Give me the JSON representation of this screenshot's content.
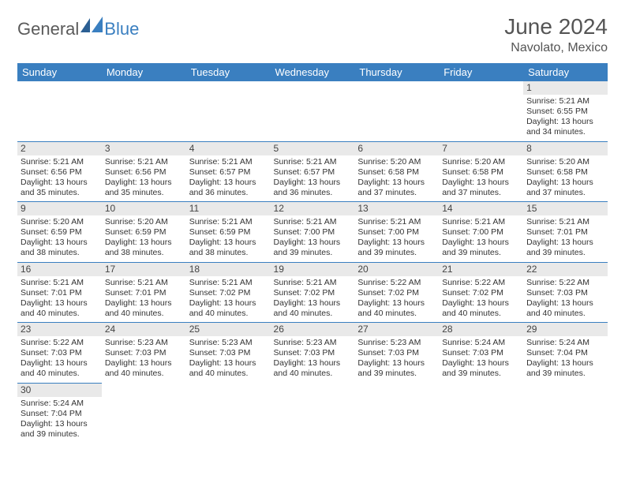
{
  "logo": {
    "part1": "General",
    "part2": "Blue"
  },
  "title": "June 2024",
  "location": "Navolato, Mexico",
  "colors": {
    "header_bg": "#3a7fc0",
    "header_fg": "#ffffff",
    "daynum_bg": "#e9e9e9",
    "empty_bg": "#f0f0f0",
    "border": "#3a7fc0",
    "text": "#333333"
  },
  "weekdays": [
    "Sunday",
    "Monday",
    "Tuesday",
    "Wednesday",
    "Thursday",
    "Friday",
    "Saturday"
  ],
  "weeks": [
    [
      null,
      null,
      null,
      null,
      null,
      null,
      {
        "n": "1",
        "sr": "5:21 AM",
        "ss": "6:55 PM",
        "dl": "13 hours and 34 minutes."
      }
    ],
    [
      {
        "n": "2",
        "sr": "5:21 AM",
        "ss": "6:56 PM",
        "dl": "13 hours and 35 minutes."
      },
      {
        "n": "3",
        "sr": "5:21 AM",
        "ss": "6:56 PM",
        "dl": "13 hours and 35 minutes."
      },
      {
        "n": "4",
        "sr": "5:21 AM",
        "ss": "6:57 PM",
        "dl": "13 hours and 36 minutes."
      },
      {
        "n": "5",
        "sr": "5:21 AM",
        "ss": "6:57 PM",
        "dl": "13 hours and 36 minutes."
      },
      {
        "n": "6",
        "sr": "5:20 AM",
        "ss": "6:58 PM",
        "dl": "13 hours and 37 minutes."
      },
      {
        "n": "7",
        "sr": "5:20 AM",
        "ss": "6:58 PM",
        "dl": "13 hours and 37 minutes."
      },
      {
        "n": "8",
        "sr": "5:20 AM",
        "ss": "6:58 PM",
        "dl": "13 hours and 37 minutes."
      }
    ],
    [
      {
        "n": "9",
        "sr": "5:20 AM",
        "ss": "6:59 PM",
        "dl": "13 hours and 38 minutes."
      },
      {
        "n": "10",
        "sr": "5:20 AM",
        "ss": "6:59 PM",
        "dl": "13 hours and 38 minutes."
      },
      {
        "n": "11",
        "sr": "5:21 AM",
        "ss": "6:59 PM",
        "dl": "13 hours and 38 minutes."
      },
      {
        "n": "12",
        "sr": "5:21 AM",
        "ss": "7:00 PM",
        "dl": "13 hours and 39 minutes."
      },
      {
        "n": "13",
        "sr": "5:21 AM",
        "ss": "7:00 PM",
        "dl": "13 hours and 39 minutes."
      },
      {
        "n": "14",
        "sr": "5:21 AM",
        "ss": "7:00 PM",
        "dl": "13 hours and 39 minutes."
      },
      {
        "n": "15",
        "sr": "5:21 AM",
        "ss": "7:01 PM",
        "dl": "13 hours and 39 minutes."
      }
    ],
    [
      {
        "n": "16",
        "sr": "5:21 AM",
        "ss": "7:01 PM",
        "dl": "13 hours and 40 minutes."
      },
      {
        "n": "17",
        "sr": "5:21 AM",
        "ss": "7:01 PM",
        "dl": "13 hours and 40 minutes."
      },
      {
        "n": "18",
        "sr": "5:21 AM",
        "ss": "7:02 PM",
        "dl": "13 hours and 40 minutes."
      },
      {
        "n": "19",
        "sr": "5:21 AM",
        "ss": "7:02 PM",
        "dl": "13 hours and 40 minutes."
      },
      {
        "n": "20",
        "sr": "5:22 AM",
        "ss": "7:02 PM",
        "dl": "13 hours and 40 minutes."
      },
      {
        "n": "21",
        "sr": "5:22 AM",
        "ss": "7:02 PM",
        "dl": "13 hours and 40 minutes."
      },
      {
        "n": "22",
        "sr": "5:22 AM",
        "ss": "7:03 PM",
        "dl": "13 hours and 40 minutes."
      }
    ],
    [
      {
        "n": "23",
        "sr": "5:22 AM",
        "ss": "7:03 PM",
        "dl": "13 hours and 40 minutes."
      },
      {
        "n": "24",
        "sr": "5:23 AM",
        "ss": "7:03 PM",
        "dl": "13 hours and 40 minutes."
      },
      {
        "n": "25",
        "sr": "5:23 AM",
        "ss": "7:03 PM",
        "dl": "13 hours and 40 minutes."
      },
      {
        "n": "26",
        "sr": "5:23 AM",
        "ss": "7:03 PM",
        "dl": "13 hours and 40 minutes."
      },
      {
        "n": "27",
        "sr": "5:23 AM",
        "ss": "7:03 PM",
        "dl": "13 hours and 39 minutes."
      },
      {
        "n": "28",
        "sr": "5:24 AM",
        "ss": "7:03 PM",
        "dl": "13 hours and 39 minutes."
      },
      {
        "n": "29",
        "sr": "5:24 AM",
        "ss": "7:04 PM",
        "dl": "13 hours and 39 minutes."
      }
    ],
    [
      {
        "n": "30",
        "sr": "5:24 AM",
        "ss": "7:04 PM",
        "dl": "13 hours and 39 minutes."
      },
      null,
      null,
      null,
      null,
      null,
      null
    ]
  ],
  "labels": {
    "sunrise": "Sunrise:",
    "sunset": "Sunset:",
    "daylight": "Daylight:"
  }
}
